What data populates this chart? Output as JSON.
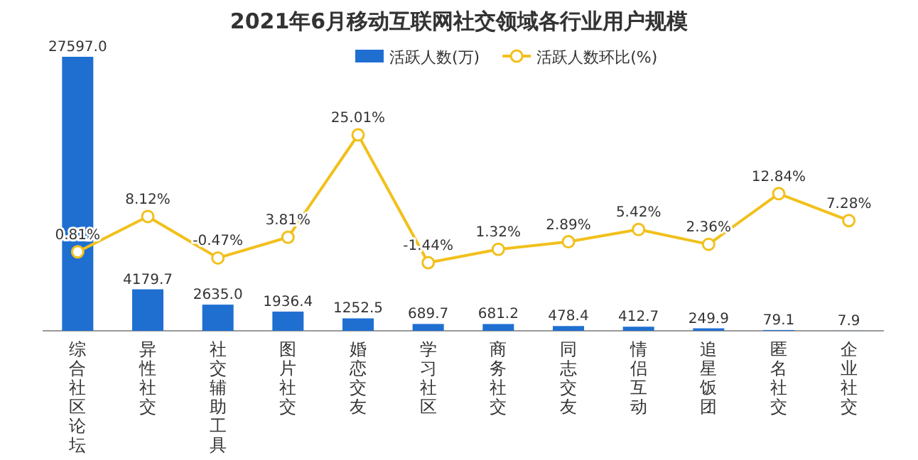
{
  "chart_data": {
    "type": "bar",
    "title": "2021年6月移动互联网社交领域各行业用户规模",
    "categories": [
      "综合社区论坛",
      "异性社交",
      "社交辅助工具",
      "图片社交",
      "婚恋交友",
      "学习社区",
      "商务社交",
      "同志交友",
      "情侣互动",
      "追星饭团",
      "匿名社交",
      "企业社交"
    ],
    "legend": "top",
    "marker": "circle",
    "series": [
      {
        "name": "活跃人数(万)",
        "color": "#1f6fd1",
        "values": [
          27597.0,
          4179.7,
          2635.0,
          1936.4,
          1252.5,
          689.7,
          681.2,
          478.4,
          412.7,
          249.9,
          79.1,
          7.9
        ],
        "value_labels": [
          "27597.0",
          "4179.7",
          "2635.0",
          "1936.4",
          "1252.5",
          "689.7",
          "681.2",
          "478.4",
          "412.7",
          "249.9",
          "79.1",
          "7.9"
        ]
      },
      {
        "name": "活跃人数环比(%)",
        "type": "line",
        "axis": "y2",
        "color": "#f2c01c",
        "values": [
          0.81,
          8.12,
          -0.47,
          3.81,
          25.01,
          -1.44,
          1.32,
          2.89,
          5.42,
          2.36,
          12.84,
          7.28
        ],
        "value_labels": [
          "0.81%",
          "8.12%",
          "-0.47%",
          "3.81%",
          "25.01%",
          "-1.44%",
          "1.32%",
          "2.89%",
          "5.42%",
          "2.36%",
          "12.84%",
          "7.28%"
        ]
      }
    ]
  }
}
